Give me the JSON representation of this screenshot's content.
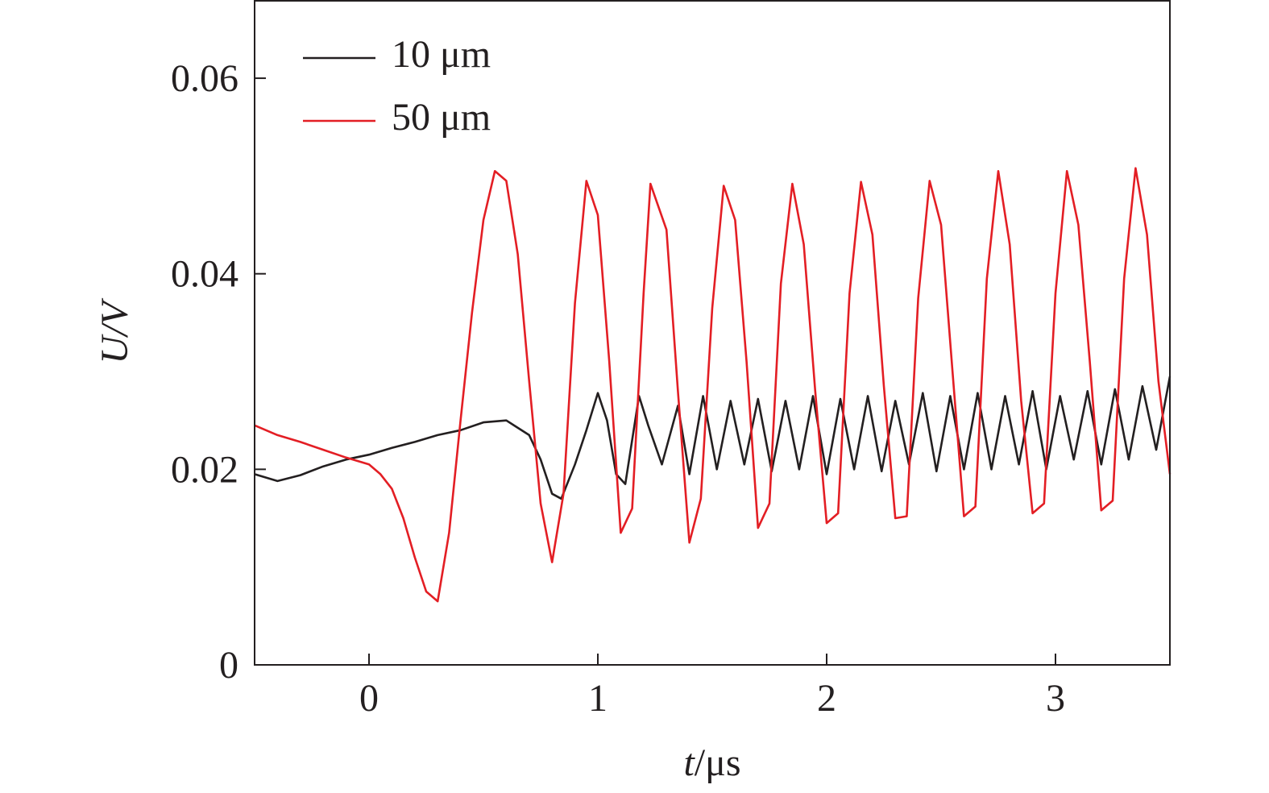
{
  "chart_data": {
    "type": "line",
    "title": "",
    "xlabel": {
      "var": "t",
      "unit": "/μs"
    },
    "ylabel": "U/V",
    "xlim": [
      -0.5,
      3.5
    ],
    "ylim": [
      0,
      0.068
    ],
    "x_ticks": [
      0,
      1,
      2,
      3
    ],
    "x_tick_labels": [
      "0",
      "1",
      "2",
      "3"
    ],
    "y_ticks": [
      0,
      0.02,
      0.04,
      0.06
    ],
    "y_tick_labels": [
      "0",
      "0.02",
      "0.04",
      "0.06"
    ],
    "grid": false,
    "legend_position": "top-left",
    "colors": {
      "10um": "#231f20",
      "50um": "#e31e24",
      "axis": "#231f20"
    },
    "legend": [
      {
        "label": "10 μm",
        "color": "#231f20"
      },
      {
        "label": "50 μm",
        "color": "#e31e24"
      }
    ],
    "series": [
      {
        "name": "10 μm",
        "color": "#231f20",
        "x": [
          -0.5,
          -0.4,
          -0.3,
          -0.2,
          -0.1,
          0.0,
          0.1,
          0.2,
          0.3,
          0.4,
          0.5,
          0.6,
          0.7,
          0.75,
          0.8,
          0.84,
          0.9,
          0.95,
          1.0,
          1.04,
          1.08,
          1.12,
          1.18,
          1.22,
          1.28,
          1.35,
          1.4,
          1.46,
          1.52,
          1.58,
          1.64,
          1.7,
          1.76,
          1.82,
          1.88,
          1.94,
          2.0,
          2.06,
          2.12,
          2.18,
          2.24,
          2.3,
          2.36,
          2.42,
          2.48,
          2.54,
          2.6,
          2.66,
          2.72,
          2.78,
          2.84,
          2.9,
          2.96,
          3.02,
          3.08,
          3.14,
          3.2,
          3.26,
          3.32,
          3.38,
          3.44,
          3.5
        ],
        "values": [
          0.0195,
          0.0188,
          0.0194,
          0.0203,
          0.021,
          0.0215,
          0.0222,
          0.0228,
          0.0235,
          0.024,
          0.0248,
          0.025,
          0.0235,
          0.021,
          0.0175,
          0.017,
          0.0205,
          0.024,
          0.0278,
          0.025,
          0.0195,
          0.0185,
          0.0275,
          0.0245,
          0.0205,
          0.0265,
          0.0195,
          0.0275,
          0.02,
          0.027,
          0.0205,
          0.0272,
          0.0198,
          0.027,
          0.02,
          0.0275,
          0.0195,
          0.0272,
          0.02,
          0.0275,
          0.0198,
          0.027,
          0.0205,
          0.0278,
          0.0198,
          0.0275,
          0.02,
          0.0278,
          0.02,
          0.0275,
          0.0205,
          0.028,
          0.02,
          0.0275,
          0.021,
          0.028,
          0.0205,
          0.0282,
          0.021,
          0.0285,
          0.022,
          0.0295
        ]
      },
      {
        "name": "50 μm",
        "color": "#e31e24",
        "x": [
          -0.5,
          -0.4,
          -0.3,
          -0.2,
          -0.1,
          0.0,
          0.05,
          0.1,
          0.15,
          0.2,
          0.25,
          0.3,
          0.35,
          0.4,
          0.45,
          0.5,
          0.55,
          0.6,
          0.65,
          0.7,
          0.75,
          0.8,
          0.85,
          0.9,
          0.95,
          1.0,
          1.05,
          1.1,
          1.15,
          1.2,
          1.23,
          1.3,
          1.35,
          1.4,
          1.45,
          1.5,
          1.55,
          1.6,
          1.65,
          1.7,
          1.75,
          1.8,
          1.85,
          1.9,
          1.95,
          2.0,
          2.05,
          2.1,
          2.15,
          2.2,
          2.25,
          2.3,
          2.35,
          2.4,
          2.45,
          2.5,
          2.55,
          2.6,
          2.65,
          2.7,
          2.75,
          2.8,
          2.85,
          2.9,
          2.95,
          3.0,
          3.05,
          3.1,
          3.15,
          3.2,
          3.25,
          3.3,
          3.35,
          3.4,
          3.45,
          3.5
        ],
        "values": [
          0.0245,
          0.0235,
          0.0228,
          0.022,
          0.0212,
          0.0205,
          0.0195,
          0.018,
          0.015,
          0.011,
          0.0075,
          0.0065,
          0.0135,
          0.025,
          0.036,
          0.0455,
          0.0505,
          0.0495,
          0.042,
          0.029,
          0.0165,
          0.0105,
          0.0175,
          0.037,
          0.0495,
          0.046,
          0.031,
          0.0135,
          0.016,
          0.038,
          0.0492,
          0.0445,
          0.028,
          0.0125,
          0.017,
          0.0365,
          0.049,
          0.0455,
          0.031,
          0.014,
          0.0165,
          0.039,
          0.0492,
          0.043,
          0.028,
          0.0145,
          0.0155,
          0.038,
          0.0494,
          0.044,
          0.0285,
          0.015,
          0.0152,
          0.0375,
          0.0495,
          0.045,
          0.03,
          0.0152,
          0.0162,
          0.0395,
          0.0505,
          0.043,
          0.027,
          0.0155,
          0.0165,
          0.038,
          0.0505,
          0.045,
          0.031,
          0.0158,
          0.0168,
          0.0395,
          0.0508,
          0.044,
          0.029,
          0.0195
        ]
      }
    ]
  }
}
